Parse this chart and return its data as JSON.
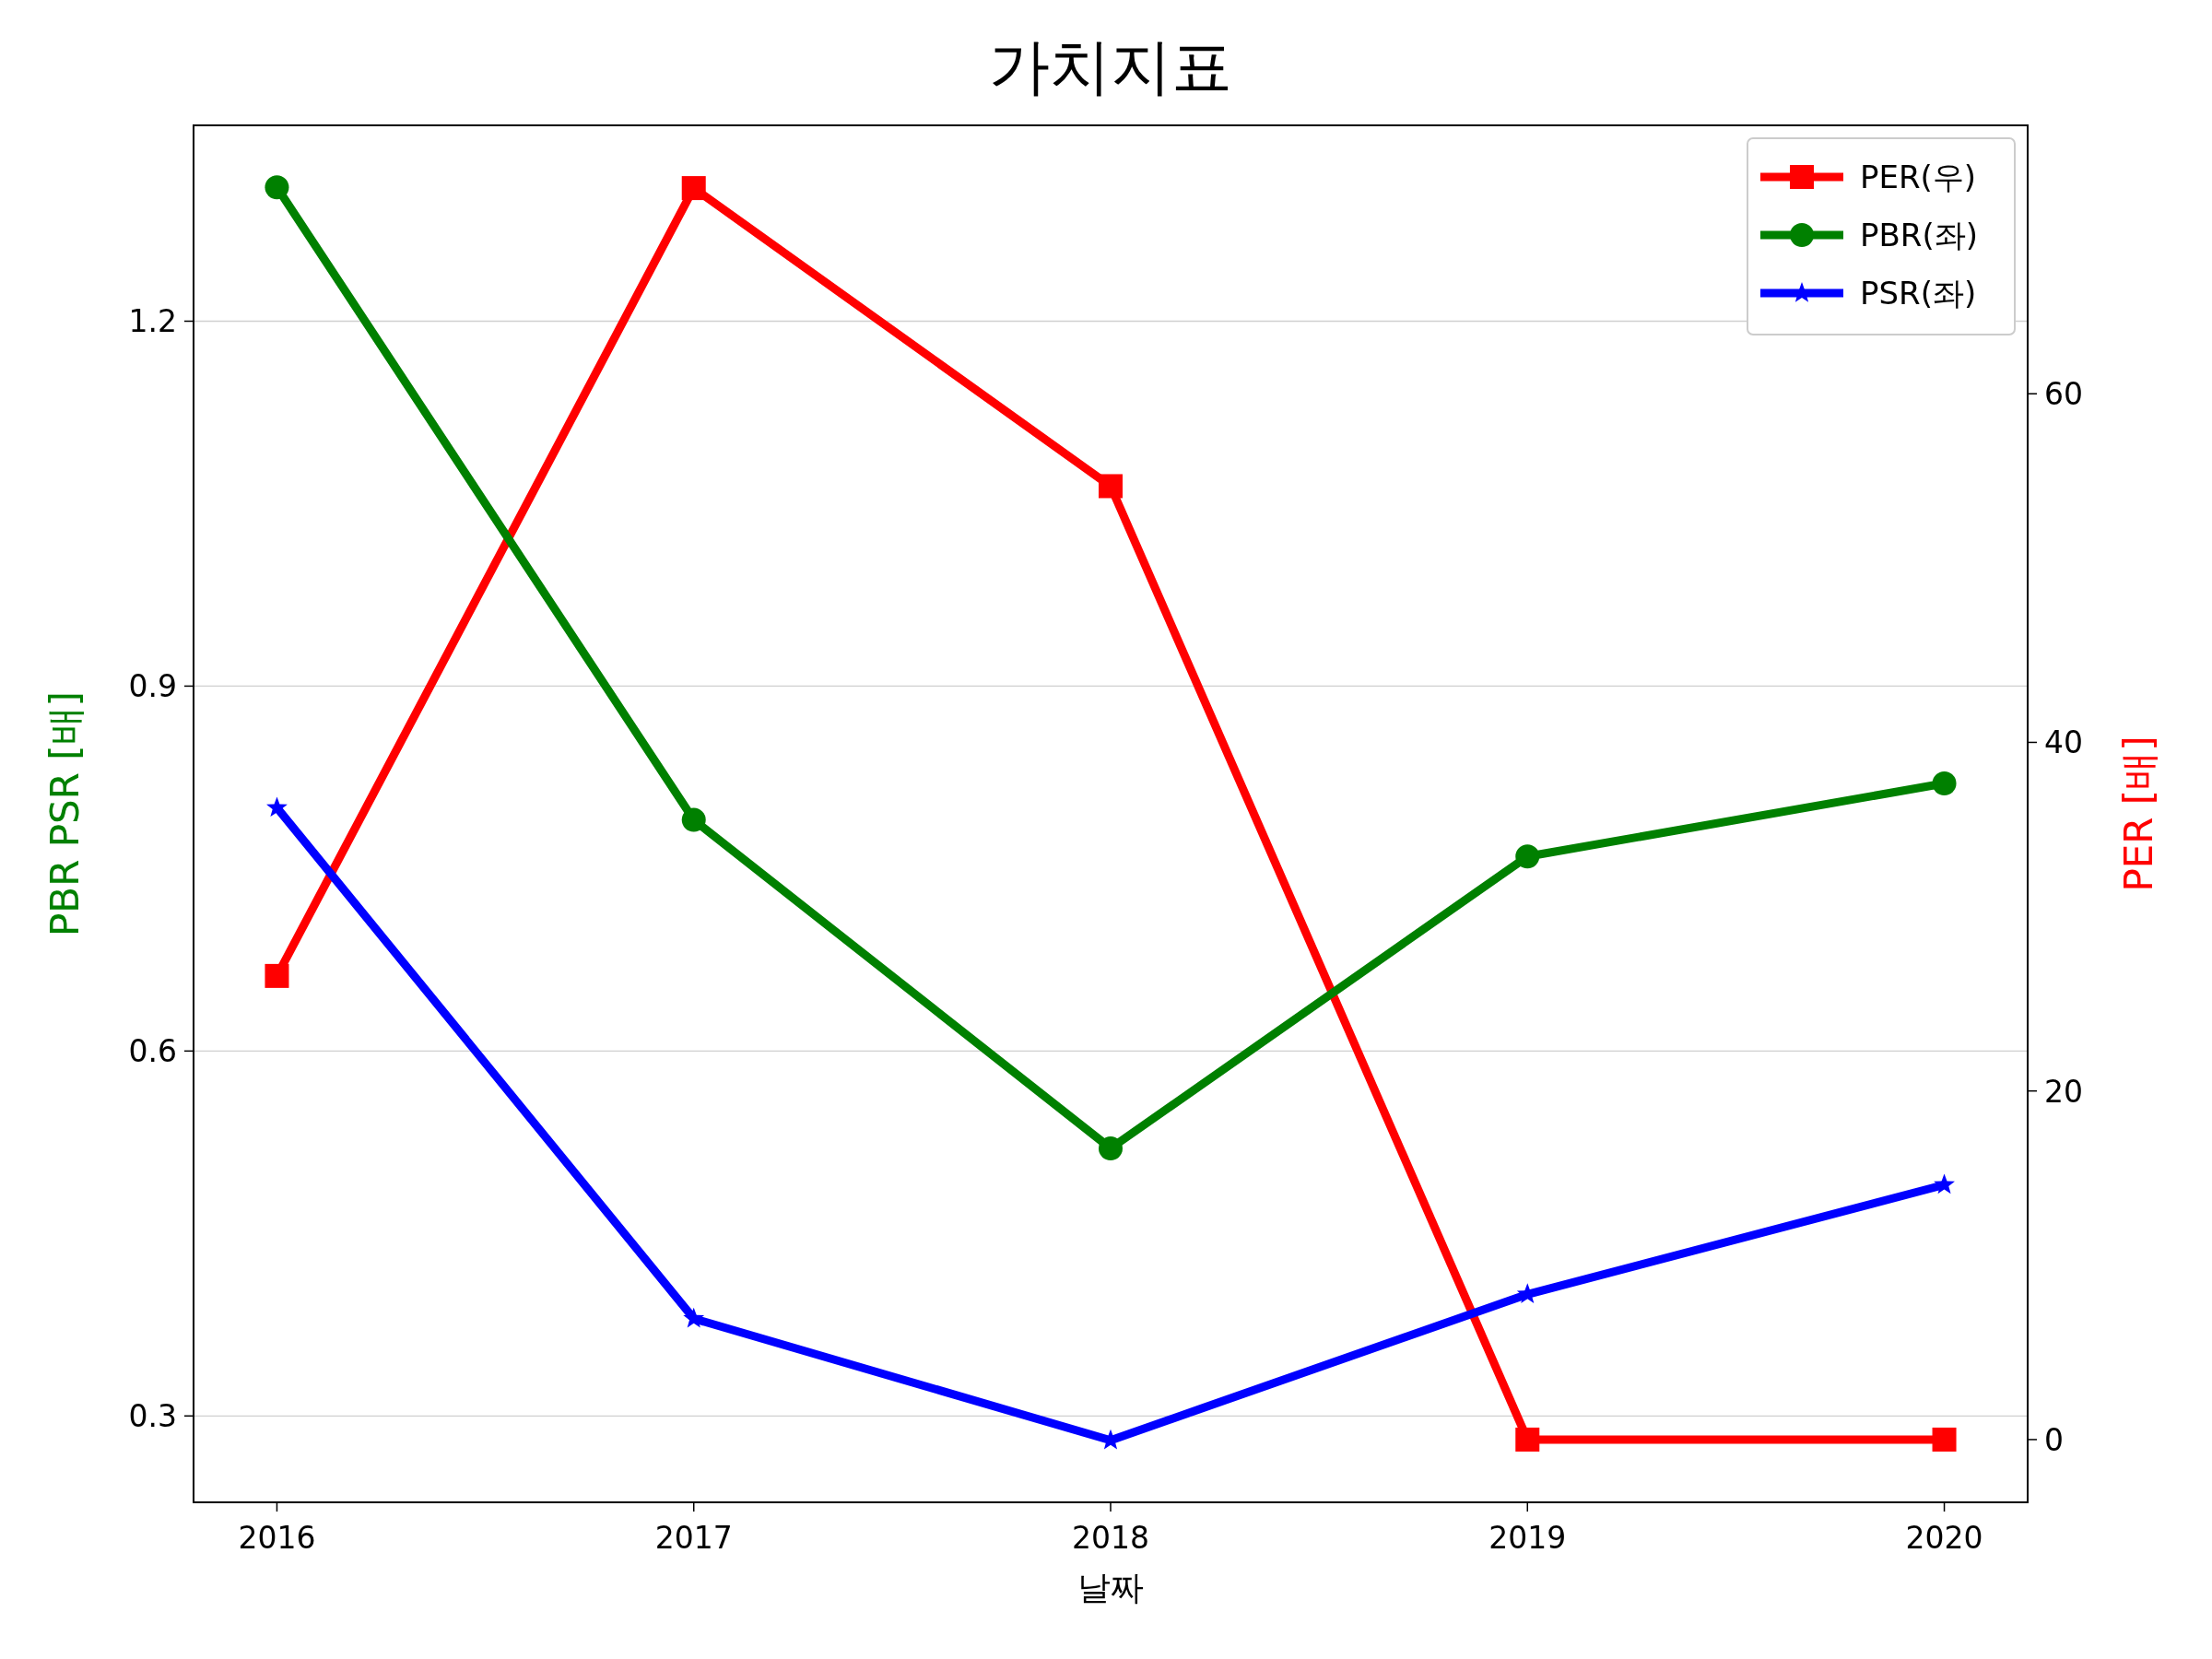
{
  "chart_data": {
    "type": "line",
    "title": "가치지표",
    "xlabel": "날짜",
    "ylabel": "PBR PSR [배]",
    "y2label": "PER [배]",
    "x": [
      2016,
      2017,
      2018,
      2019,
      2020
    ],
    "xlim": [
      2015.8,
      2020.2
    ],
    "xticks": [
      2016,
      2017,
      2018,
      2019,
      2020
    ],
    "ylim": [
      0.229,
      1.361
    ],
    "yticks": [
      0.3,
      0.6,
      0.9,
      1.2
    ],
    "y2lim": [
      -3.6,
      75.4
    ],
    "y2ticks": [
      0,
      20,
      40,
      60
    ],
    "grid": "y",
    "legend": "top right",
    "series": [
      {
        "name": "PER(우)",
        "color": "#ff0000",
        "marker": "square",
        "axis": "y2",
        "values": [
          26.6,
          71.8,
          54.7,
          0,
          0
        ]
      },
      {
        "name": "PBR(좌)",
        "color": "#008000",
        "marker": "circle",
        "values": [
          1.31,
          0.79,
          0.52,
          0.76,
          0.82
        ]
      },
      {
        "name": "PSR(좌)",
        "color": "#0000ff",
        "marker": "star",
        "values": [
          0.8,
          0.38,
          0.28,
          0.4,
          0.49
        ]
      }
    ]
  }
}
